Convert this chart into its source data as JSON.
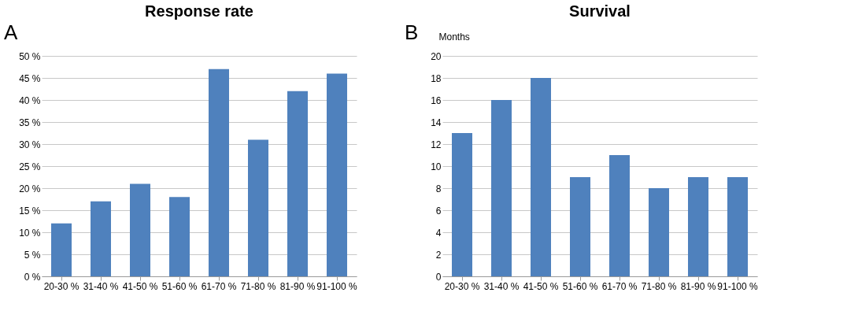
{
  "chart_data": [
    {
      "type": "bar",
      "title": "Response rate",
      "annotations": [
        "A"
      ],
      "categories": [
        "20-30 %",
        "31-40 %",
        "41-50 %",
        "51-60 %",
        "61-70 %",
        "71-80 %",
        "81-90 %",
        "91-100 %"
      ],
      "values": [
        12,
        17,
        21,
        18,
        47,
        31,
        42,
        46
      ],
      "color": "#4f81bd",
      "ylim": [
        0,
        50
      ],
      "yticks": [
        {
          "value": 0,
          "label": "0 %"
        },
        {
          "value": 5,
          "label": "5 %"
        },
        {
          "value": 10,
          "label": "10 %"
        },
        {
          "value": 15,
          "label": "15 %"
        },
        {
          "value": 20,
          "label": "20 %"
        },
        {
          "value": 25,
          "label": "25 %"
        },
        {
          "value": 30,
          "label": "30 %"
        },
        {
          "value": 35,
          "label": "35 %"
        },
        {
          "value": 40,
          "label": "40 %"
        },
        {
          "value": 45,
          "label": "45 %"
        },
        {
          "value": 50,
          "label": "50 %"
        }
      ],
      "grid": "y"
    },
    {
      "type": "bar",
      "title": "Survival",
      "ylabel": "Months",
      "annotations": [
        "B"
      ],
      "categories": [
        "20-30 %",
        "31-40 %",
        "41-50 %",
        "51-60 %",
        "61-70 %",
        "71-80 %",
        "81-90 %",
        "91-100 %"
      ],
      "values": [
        13,
        16,
        18,
        9,
        11,
        8,
        9,
        9
      ],
      "color": "#4f81bd",
      "ylim": [
        0,
        20
      ],
      "yticks": [
        0,
        2,
        4,
        6,
        8,
        10,
        12,
        14,
        16,
        18,
        20
      ],
      "grid": "y"
    }
  ]
}
